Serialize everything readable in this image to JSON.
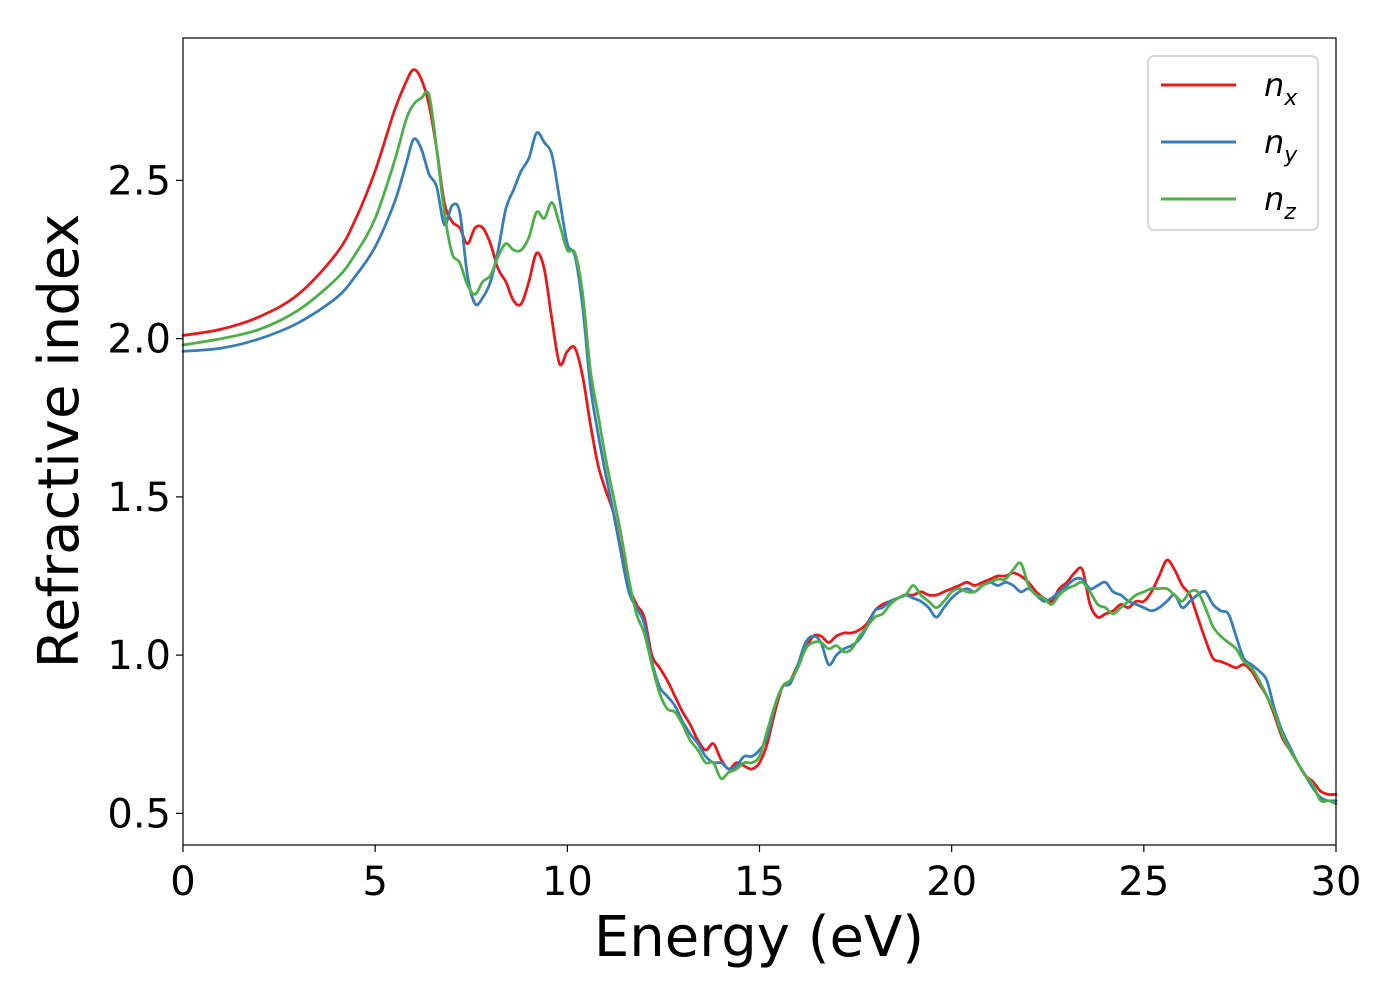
{
  "chart_data": {
    "type": "line",
    "xlabel": "Energy (eV)",
    "ylabel": "Refractive index",
    "xlim": [
      0,
      30
    ],
    "ylim": [
      0.4,
      2.95
    ],
    "xticks": [
      0,
      5,
      10,
      15,
      20,
      25,
      30
    ],
    "xtick_labels": [
      "0",
      "5",
      "10",
      "15",
      "20",
      "25",
      "30"
    ],
    "yticks": [
      0.5,
      1.0,
      1.5,
      2.0,
      2.5
    ],
    "ytick_labels": [
      "0.5",
      "1.0",
      "1.5",
      "2.0",
      "2.5"
    ],
    "grid": false,
    "legend_position": "top-right",
    "series": [
      {
        "name": "n",
        "subscript": "x",
        "color": "#e41a1c",
        "x": [
          0,
          1,
          2,
          3,
          4,
          4.5,
          5,
          5.5,
          5.8,
          6.0,
          6.2,
          6.4,
          6.6,
          6.8,
          7.0,
          7.2,
          7.4,
          7.6,
          7.8,
          8.0,
          8.2,
          8.4,
          8.6,
          8.8,
          9.0,
          9.2,
          9.4,
          9.6,
          9.8,
          10.0,
          10.2,
          10.4,
          10.6,
          10.8,
          11.0,
          11.2,
          11.4,
          11.6,
          11.8,
          12.0,
          12.2,
          12.4,
          12.6,
          12.8,
          13.0,
          13.2,
          13.4,
          13.6,
          13.8,
          14.0,
          14.2,
          14.4,
          14.6,
          14.8,
          15.0,
          15.2,
          15.4,
          15.6,
          15.8,
          16.0,
          16.2,
          16.4,
          16.6,
          16.8,
          17.0,
          17.2,
          17.4,
          17.6,
          17.8,
          18.0,
          18.2,
          18.4,
          18.6,
          18.8,
          19.0,
          19.2,
          19.4,
          19.6,
          19.8,
          20.0,
          20.2,
          20.4,
          20.6,
          20.8,
          21.0,
          21.2,
          21.4,
          21.6,
          21.8,
          22.0,
          22.2,
          22.4,
          22.6,
          22.8,
          23.0,
          23.2,
          23.4,
          23.6,
          23.8,
          24.0,
          24.2,
          24.4,
          24.6,
          24.8,
          25.0,
          25.2,
          25.4,
          25.6,
          25.8,
          26.0,
          26.2,
          26.4,
          26.6,
          26.8,
          27.0,
          27.2,
          27.4,
          27.6,
          27.8,
          28.0,
          28.2,
          28.4,
          28.6,
          28.8,
          29.0,
          29.2,
          29.4,
          29.6,
          29.8,
          30.0
        ],
        "y": [
          2.01,
          2.03,
          2.07,
          2.14,
          2.27,
          2.38,
          2.53,
          2.72,
          2.81,
          2.85,
          2.82,
          2.74,
          2.6,
          2.43,
          2.37,
          2.35,
          2.3,
          2.35,
          2.35,
          2.3,
          2.22,
          2.18,
          2.12,
          2.11,
          2.18,
          2.27,
          2.22,
          2.06,
          1.92,
          1.96,
          1.97,
          1.88,
          1.73,
          1.6,
          1.52,
          1.45,
          1.33,
          1.22,
          1.16,
          1.12,
          1.0,
          0.96,
          0.92,
          0.87,
          0.82,
          0.78,
          0.73,
          0.7,
          0.72,
          0.67,
          0.64,
          0.66,
          0.65,
          0.64,
          0.66,
          0.72,
          0.82,
          0.9,
          0.92,
          0.97,
          1.02,
          1.06,
          1.06,
          1.04,
          1.06,
          1.07,
          1.07,
          1.08,
          1.1,
          1.14,
          1.16,
          1.17,
          1.18,
          1.19,
          1.19,
          1.2,
          1.19,
          1.19,
          1.2,
          1.21,
          1.22,
          1.23,
          1.22,
          1.23,
          1.24,
          1.25,
          1.25,
          1.26,
          1.25,
          1.23,
          1.2,
          1.18,
          1.17,
          1.21,
          1.23,
          1.26,
          1.27,
          1.16,
          1.12,
          1.13,
          1.14,
          1.16,
          1.15,
          1.17,
          1.17,
          1.2,
          1.25,
          1.3,
          1.27,
          1.22,
          1.19,
          1.12,
          1.05,
          0.99,
          0.98,
          0.97,
          0.96,
          0.97,
          0.95,
          0.91,
          0.87,
          0.81,
          0.74,
          0.7,
          0.66,
          0.62,
          0.6,
          0.57,
          0.56,
          0.56
        ]
      },
      {
        "name": "n",
        "subscript": "y",
        "color": "#377eb8",
        "x": [
          0,
          1,
          2,
          3,
          4,
          4.5,
          5,
          5.5,
          5.8,
          6.0,
          6.2,
          6.4,
          6.6,
          6.8,
          7.0,
          7.2,
          7.4,
          7.6,
          7.8,
          8.0,
          8.2,
          8.4,
          8.6,
          8.8,
          9.0,
          9.2,
          9.4,
          9.6,
          9.8,
          10.0,
          10.2,
          10.4,
          10.6,
          10.8,
          11.0,
          11.2,
          11.4,
          11.6,
          11.8,
          12.0,
          12.2,
          12.4,
          12.6,
          12.8,
          13.0,
          13.2,
          13.4,
          13.6,
          13.8,
          14.0,
          14.2,
          14.4,
          14.6,
          14.8,
          15.0,
          15.2,
          15.4,
          15.6,
          15.8,
          16.0,
          16.2,
          16.4,
          16.6,
          16.8,
          17.0,
          17.2,
          17.4,
          17.6,
          17.8,
          18.0,
          18.2,
          18.4,
          18.6,
          18.8,
          19.0,
          19.2,
          19.4,
          19.6,
          19.8,
          20.0,
          20.2,
          20.4,
          20.6,
          20.8,
          21.0,
          21.2,
          21.4,
          21.6,
          21.8,
          22.0,
          22.2,
          22.4,
          22.6,
          22.8,
          23.0,
          23.2,
          23.4,
          23.6,
          23.8,
          24.0,
          24.2,
          24.4,
          24.6,
          24.8,
          25.0,
          25.2,
          25.4,
          25.6,
          25.8,
          26.0,
          26.2,
          26.4,
          26.6,
          26.8,
          27.0,
          27.2,
          27.4,
          27.6,
          27.8,
          28.0,
          28.2,
          28.4,
          28.6,
          28.8,
          29.0,
          29.2,
          29.4,
          29.6,
          29.8,
          30.0
        ],
        "y": [
          1.96,
          1.97,
          2.0,
          2.05,
          2.13,
          2.2,
          2.29,
          2.43,
          2.55,
          2.63,
          2.6,
          2.52,
          2.48,
          2.36,
          2.42,
          2.4,
          2.2,
          2.11,
          2.13,
          2.18,
          2.28,
          2.41,
          2.47,
          2.53,
          2.57,
          2.65,
          2.62,
          2.58,
          2.44,
          2.3,
          2.26,
          2.1,
          1.85,
          1.7,
          1.57,
          1.45,
          1.32,
          1.2,
          1.15,
          1.1,
          0.98,
          0.9,
          0.87,
          0.84,
          0.79,
          0.75,
          0.72,
          0.68,
          0.66,
          0.66,
          0.64,
          0.65,
          0.68,
          0.68,
          0.7,
          0.74,
          0.84,
          0.9,
          0.91,
          0.97,
          1.04,
          1.06,
          1.04,
          0.97,
          1.0,
          1.02,
          1.03,
          1.05,
          1.09,
          1.14,
          1.15,
          1.17,
          1.18,
          1.19,
          1.18,
          1.17,
          1.15,
          1.12,
          1.15,
          1.18,
          1.2,
          1.21,
          1.2,
          1.22,
          1.23,
          1.22,
          1.23,
          1.22,
          1.2,
          1.21,
          1.19,
          1.17,
          1.18,
          1.2,
          1.22,
          1.24,
          1.24,
          1.21,
          1.22,
          1.23,
          1.2,
          1.19,
          1.17,
          1.16,
          1.15,
          1.14,
          1.15,
          1.17,
          1.19,
          1.15,
          1.17,
          1.19,
          1.2,
          1.16,
          1.14,
          1.13,
          1.06,
          0.99,
          0.97,
          0.95,
          0.92,
          0.83,
          0.76,
          0.71,
          0.66,
          0.62,
          0.58,
          0.55,
          0.54,
          0.54
        ]
      },
      {
        "name": "n",
        "subscript": "z",
        "color": "#4daf4a",
        "x": [
          0,
          1,
          2,
          3,
          4,
          4.5,
          5,
          5.5,
          5.8,
          6.0,
          6.2,
          6.4,
          6.6,
          6.8,
          7.0,
          7.2,
          7.4,
          7.6,
          7.8,
          8.0,
          8.2,
          8.4,
          8.6,
          8.8,
          9.0,
          9.2,
          9.4,
          9.6,
          9.8,
          10.0,
          10.2,
          10.4,
          10.6,
          10.8,
          11.0,
          11.2,
          11.4,
          11.6,
          11.8,
          12.0,
          12.2,
          12.4,
          12.6,
          12.8,
          13.0,
          13.2,
          13.4,
          13.6,
          13.8,
          14.0,
          14.2,
          14.4,
          14.6,
          14.8,
          15.0,
          15.2,
          15.4,
          15.6,
          15.8,
          16.0,
          16.2,
          16.4,
          16.6,
          16.8,
          17.0,
          17.2,
          17.4,
          17.6,
          17.8,
          18.0,
          18.2,
          18.4,
          18.6,
          18.8,
          19.0,
          19.2,
          19.4,
          19.6,
          19.8,
          20.0,
          20.2,
          20.4,
          20.6,
          20.8,
          21.0,
          21.2,
          21.4,
          21.6,
          21.8,
          22.0,
          22.2,
          22.4,
          22.6,
          22.8,
          23.0,
          23.2,
          23.4,
          23.6,
          23.8,
          24.0,
          24.2,
          24.4,
          24.6,
          24.8,
          25.0,
          25.2,
          25.4,
          25.6,
          25.8,
          26.0,
          26.2,
          26.4,
          26.6,
          26.8,
          27.0,
          27.2,
          27.4,
          27.6,
          27.8,
          28.0,
          28.2,
          28.4,
          28.6,
          28.8,
          29.0,
          29.2,
          29.4,
          29.6,
          29.8,
          30.0
        ],
        "y": [
          1.98,
          2.0,
          2.03,
          2.09,
          2.19,
          2.27,
          2.38,
          2.56,
          2.69,
          2.74,
          2.76,
          2.77,
          2.6,
          2.4,
          2.27,
          2.24,
          2.17,
          2.14,
          2.18,
          2.2,
          2.26,
          2.3,
          2.28,
          2.28,
          2.32,
          2.4,
          2.38,
          2.43,
          2.36,
          2.28,
          2.27,
          2.14,
          1.9,
          1.76,
          1.62,
          1.5,
          1.38,
          1.24,
          1.13,
          1.07,
          0.97,
          0.88,
          0.83,
          0.82,
          0.78,
          0.73,
          0.7,
          0.66,
          0.66,
          0.61,
          0.63,
          0.64,
          0.66,
          0.66,
          0.68,
          0.76,
          0.84,
          0.9,
          0.92,
          0.96,
          1.02,
          1.04,
          1.04,
          1.02,
          1.03,
          1.01,
          1.02,
          1.06,
          1.09,
          1.12,
          1.13,
          1.16,
          1.18,
          1.19,
          1.22,
          1.19,
          1.17,
          1.15,
          1.17,
          1.2,
          1.21,
          1.2,
          1.2,
          1.22,
          1.23,
          1.24,
          1.24,
          1.27,
          1.29,
          1.22,
          1.19,
          1.18,
          1.16,
          1.19,
          1.21,
          1.22,
          1.23,
          1.2,
          1.16,
          1.15,
          1.13,
          1.15,
          1.17,
          1.19,
          1.2,
          1.21,
          1.21,
          1.21,
          1.19,
          1.17,
          1.2,
          1.2,
          1.15,
          1.09,
          1.06,
          1.04,
          1.02,
          0.98,
          0.96,
          0.92,
          0.87,
          0.82,
          0.75,
          0.7,
          0.66,
          0.62,
          0.59,
          0.54,
          0.54,
          0.53
        ]
      }
    ]
  }
}
